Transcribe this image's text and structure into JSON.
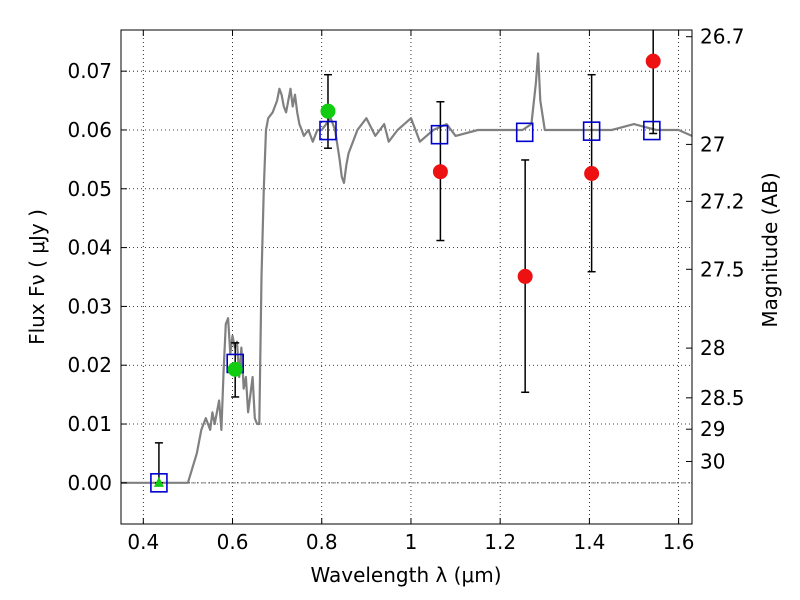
{
  "chart_data": {
    "type": "scatter",
    "xlabel": "Wavelength  λ (μm)",
    "ylabel": "Flux  Fν  ( μJy )",
    "y2label": "Magnitude (AB)",
    "xlim": [
      0.35,
      1.63
    ],
    "ylim": [
      -0.007,
      0.077
    ],
    "grid": true,
    "x_ticks": [
      {
        "value": 0.4,
        "label": "0.4"
      },
      {
        "value": 0.6,
        "label": "0.6"
      },
      {
        "value": 0.8,
        "label": "0.8"
      },
      {
        "value": 1.0,
        "label": "1"
      },
      {
        "value": 1.2,
        "label": "1.2"
      },
      {
        "value": 1.4,
        "label": "1.4"
      },
      {
        "value": 1.6,
        "label": "1.6"
      }
    ],
    "y_ticks": [
      {
        "value": 0.0,
        "label": "0.00"
      },
      {
        "value": 0.01,
        "label": "0.01"
      },
      {
        "value": 0.02,
        "label": "0.02"
      },
      {
        "value": 0.03,
        "label": "0.03"
      },
      {
        "value": 0.04,
        "label": "0.04"
      },
      {
        "value": 0.05,
        "label": "0.05"
      },
      {
        "value": 0.06,
        "label": "0.06"
      },
      {
        "value": 0.07,
        "label": "0.07"
      }
    ],
    "mag_ticks": [
      {
        "mag": 26.7,
        "label": "26.7"
      },
      {
        "mag": 27,
        "label": "27"
      },
      {
        "mag": 27.2,
        "label": "27.2"
      },
      {
        "mag": 27.5,
        "label": "27.5"
      },
      {
        "mag": 28,
        "label": "28"
      },
      {
        "mag": 28.5,
        "label": "28.5"
      },
      {
        "mag": 29,
        "label": "29"
      },
      {
        "mag": 30,
        "label": "30"
      }
    ],
    "model_spectrum": {
      "color": "#808080",
      "x": [
        0.35,
        0.42,
        0.5,
        0.52,
        0.53,
        0.54,
        0.55,
        0.555,
        0.56,
        0.57,
        0.575,
        0.58,
        0.585,
        0.59,
        0.595,
        0.6,
        0.605,
        0.61,
        0.615,
        0.62,
        0.625,
        0.63,
        0.635,
        0.64,
        0.645,
        0.65,
        0.655,
        0.66,
        0.665,
        0.67,
        0.675,
        0.68,
        0.69,
        0.7,
        0.705,
        0.71,
        0.715,
        0.72,
        0.725,
        0.73,
        0.735,
        0.74,
        0.745,
        0.75,
        0.755,
        0.76,
        0.77,
        0.78,
        0.79,
        0.8,
        0.81,
        0.82,
        0.83,
        0.84,
        0.845,
        0.85,
        0.855,
        0.86,
        0.865,
        0.87,
        0.88,
        0.9,
        0.92,
        0.94,
        0.95,
        0.97,
        1.0,
        1.02,
        1.05,
        1.08,
        1.1,
        1.15,
        1.2,
        1.25,
        1.27,
        1.28,
        1.285,
        1.29,
        1.3,
        1.35,
        1.4,
        1.45,
        1.5,
        1.55,
        1.6,
        1.63
      ],
      "y": [
        0.0,
        0.0,
        0.0,
        0.005,
        0.009,
        0.011,
        0.009,
        0.012,
        0.01,
        0.014,
        0.009,
        0.019,
        0.027,
        0.028,
        0.022,
        0.025,
        0.023,
        0.024,
        0.018,
        0.023,
        0.016,
        0.018,
        0.012,
        0.015,
        0.018,
        0.011,
        0.01,
        0.01,
        0.035,
        0.05,
        0.06,
        0.062,
        0.063,
        0.065,
        0.067,
        0.066,
        0.064,
        0.063,
        0.065,
        0.067,
        0.064,
        0.066,
        0.063,
        0.061,
        0.06,
        0.059,
        0.06,
        0.058,
        0.06,
        0.06,
        0.061,
        0.062,
        0.06,
        0.055,
        0.052,
        0.051,
        0.054,
        0.056,
        0.057,
        0.058,
        0.06,
        0.062,
        0.059,
        0.061,
        0.058,
        0.06,
        0.062,
        0.058,
        0.06,
        0.061,
        0.059,
        0.06,
        0.06,
        0.06,
        0.061,
        0.068,
        0.073,
        0.065,
        0.06,
        0.06,
        0.06,
        0.06,
        0.061,
        0.06,
        0.06,
        0.059
      ]
    },
    "series": [
      {
        "marker": "square-open",
        "color": "#0000cc",
        "points": [
          {
            "x": 0.435,
            "y": 0.0
          },
          {
            "x": 0.606,
            "y": 0.0203
          },
          {
            "x": 0.814,
            "y": 0.0599
          },
          {
            "x": 1.064,
            "y": 0.0592
          },
          {
            "x": 1.255,
            "y": 0.0596
          },
          {
            "x": 1.405,
            "y": 0.0598
          },
          {
            "x": 1.54,
            "y": 0.0599
          }
        ]
      },
      {
        "marker": "circle",
        "color": "#11cc11",
        "points": [
          {
            "x": 0.606,
            "y": 0.0193
          },
          {
            "x": 0.814,
            "y": 0.0632
          }
        ]
      },
      {
        "marker": "triangle",
        "color": "#11cc11",
        "points": [
          {
            "x": 0.435,
            "y": 0.0
          }
        ]
      },
      {
        "marker": "circle",
        "color": "#ee1111",
        "points": [
          {
            "x": 1.066,
            "y": 0.0529
          },
          {
            "x": 1.256,
            "y": 0.0351
          },
          {
            "x": 1.405,
            "y": 0.0526
          },
          {
            "x": 1.543,
            "y": 0.0717
          }
        ]
      }
    ],
    "error_bars": [
      {
        "x": 0.435,
        "low": 0.0,
        "high": 0.0068
      },
      {
        "x": 0.606,
        "low": 0.0146,
        "high": 0.0238
      },
      {
        "x": 0.814,
        "low": 0.0569,
        "high": 0.0694
      },
      {
        "x": 1.066,
        "low": 0.0412,
        "high": 0.0648
      },
      {
        "x": 1.256,
        "low": 0.0154,
        "high": 0.0549
      },
      {
        "x": 1.405,
        "low": 0.0359,
        "high": 0.0694
      },
      {
        "x": 1.543,
        "low": 0.0594,
        "high": 0.0772
      }
    ],
    "zero_line": {
      "y": 0.0,
      "color": "#808080"
    }
  }
}
